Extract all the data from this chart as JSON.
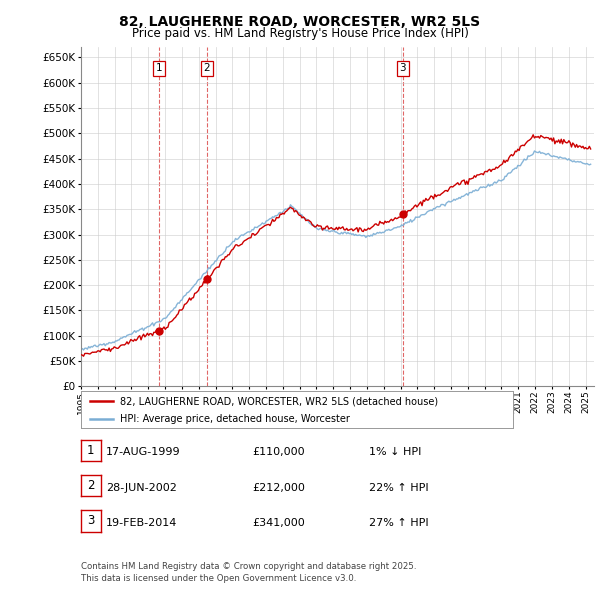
{
  "title": "82, LAUGHERNE ROAD, WORCESTER, WR2 5LS",
  "subtitle": "Price paid vs. HM Land Registry's House Price Index (HPI)",
  "ytick_values": [
    0,
    50000,
    100000,
    150000,
    200000,
    250000,
    300000,
    350000,
    400000,
    450000,
    500000,
    550000,
    600000,
    650000
  ],
  "xmin": 1995,
  "xmax": 2025.5,
  "ymin": 0,
  "ymax": 670000,
  "sale_dates": [
    1999.63,
    2002.49,
    2014.13
  ],
  "sale_prices": [
    110000,
    212000,
    341000
  ],
  "sale_labels": [
    "1",
    "2",
    "3"
  ],
  "legend_line1": "82, LAUGHERNE ROAD, WORCESTER, WR2 5LS (detached house)",
  "legend_line2": "HPI: Average price, detached house, Worcester",
  "table_rows": [
    {
      "num": "1",
      "date": "17-AUG-1999",
      "price": "£110,000",
      "hpi": "1% ↓ HPI"
    },
    {
      "num": "2",
      "date": "28-JUN-2002",
      "price": "£212,000",
      "hpi": "22% ↑ HPI"
    },
    {
      "num": "3",
      "date": "19-FEB-2014",
      "price": "£341,000",
      "hpi": "27% ↑ HPI"
    }
  ],
  "footer": "Contains HM Land Registry data © Crown copyright and database right 2025.\nThis data is licensed under the Open Government Licence v3.0.",
  "hpi_color": "#7aadd4",
  "price_color": "#cc0000",
  "vline_color": "#cc0000",
  "grid_color": "#cccccc",
  "bg_color": "#ffffff"
}
